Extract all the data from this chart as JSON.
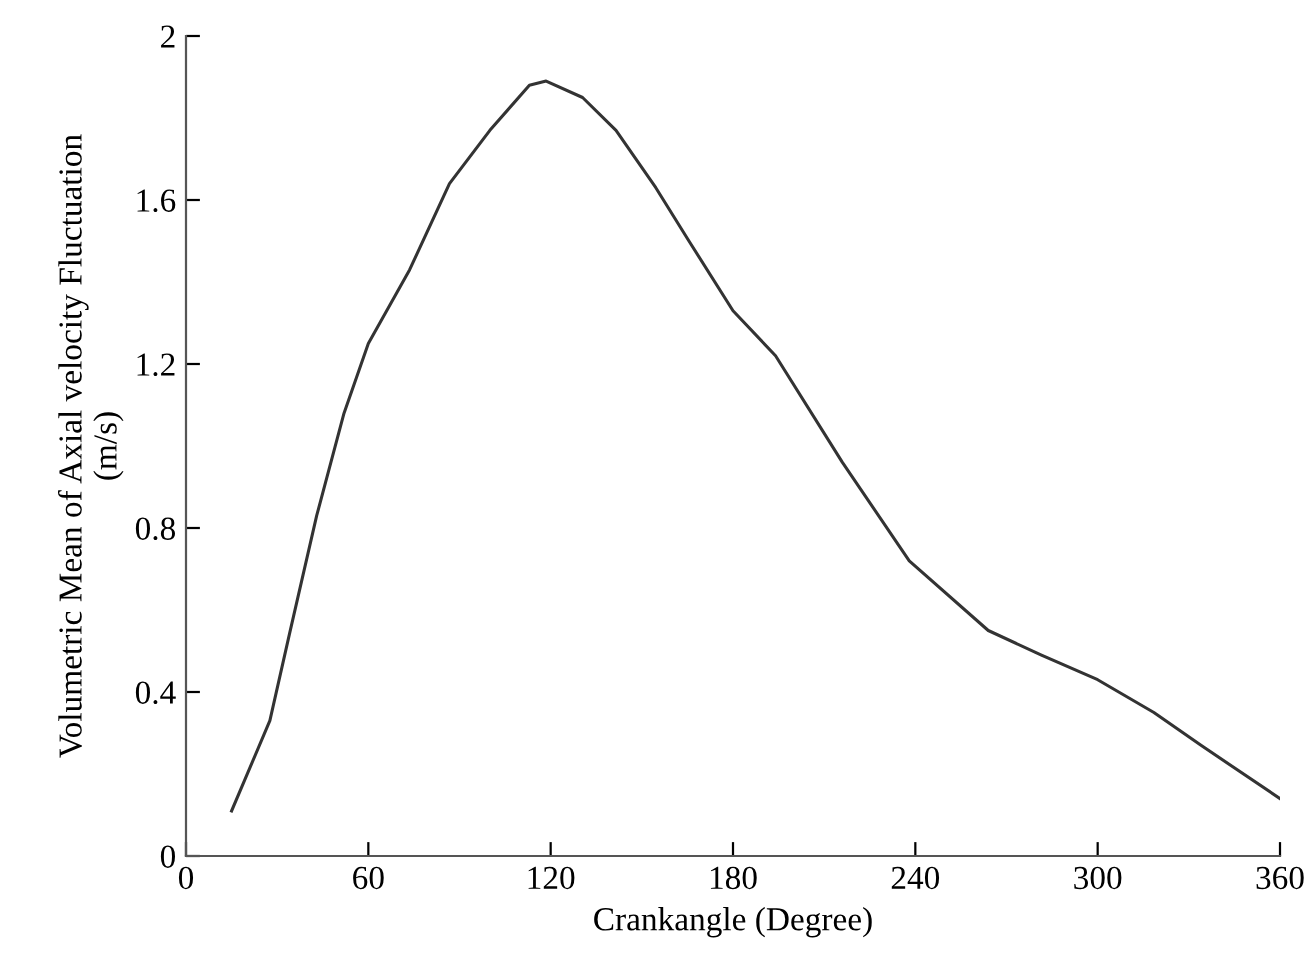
{
  "chart_data": {
    "type": "line",
    "xlabel": "Crankangle (Degree)",
    "ylabel": "Volumetric Mean of Axial velocity Fluctuation\n(m/s)",
    "x": [
      15,
      27.6,
      34,
      43,
      52,
      60,
      73.6,
      86.7,
      100,
      113,
      118.5,
      130.5,
      141.5,
      154.6,
      165.5,
      180,
      194,
      216,
      238,
      264,
      281.5,
      300,
      318.5,
      334,
      360
    ],
    "series": [
      {
        "color": "#333333",
        "values": [
          0.11,
          0.33,
          0.54,
          0.83,
          1.08,
          1.25,
          1.43,
          1.64,
          1.77,
          1.88,
          1.89,
          1.85,
          1.77,
          1.63,
          1.5,
          1.33,
          1.22,
          0.96,
          0.72,
          0.55,
          0.49,
          0.43,
          0.35,
          0.27,
          0.14
        ]
      }
    ],
    "xlim": [
      0,
      360
    ],
    "xticks": [
      0,
      60,
      120,
      180,
      240,
      300,
      360
    ],
    "ylim": [
      0,
      2
    ],
    "yticks": [
      0,
      0.4,
      0.8,
      1.2,
      1.6,
      2
    ],
    "marker": "none",
    "line_style": "solid",
    "grid": false,
    "legend": false
  }
}
